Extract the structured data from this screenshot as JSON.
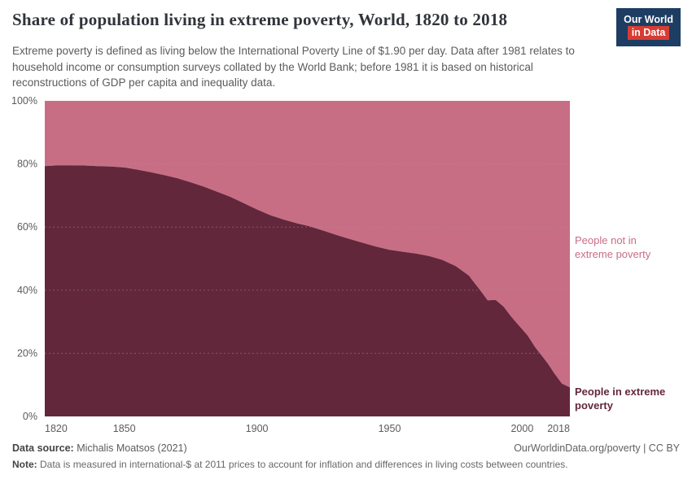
{
  "header": {
    "title": "Share of population living in extreme poverty, World, 1820 to 2018",
    "subtitle": "Extreme poverty is defined as living below the International Poverty Line of $1.90 per day. Data after 1981 relates to household income or consumption surveys collated by the World Bank; before 1981 it is based on historical reconstructions of GDP per capita and inequality data.",
    "logo": {
      "line1": "Our World",
      "line2": "in Data",
      "bg_color": "#1d3d63",
      "accent_color": "#d73c34"
    }
  },
  "annotations": {
    "not_poverty_label": "People not in\nextreme poverty",
    "poverty_label": "People in extreme\npoverty"
  },
  "chart_data": {
    "type": "area",
    "stacked": true,
    "title": "Share of population living in extreme poverty, World, 1820 to 2018",
    "xlabel": "",
    "ylabel": "",
    "ylim": [
      0,
      100
    ],
    "grid": "dashed-horizontal",
    "legend_position": "right-edge-annotations",
    "x": [
      1820,
      1825,
      1830,
      1835,
      1840,
      1845,
      1850,
      1855,
      1860,
      1865,
      1870,
      1875,
      1880,
      1885,
      1890,
      1895,
      1900,
      1905,
      1910,
      1915,
      1920,
      1925,
      1930,
      1935,
      1940,
      1945,
      1950,
      1955,
      1960,
      1965,
      1970,
      1975,
      1980,
      1981,
      1984,
      1987,
      1990,
      1993,
      1996,
      1999,
      2002,
      2005,
      2008,
      2010,
      2012,
      2015,
      2017,
      2018
    ],
    "series": [
      {
        "name": "People in extreme poverty",
        "color": "#63273c",
        "values": [
          79.3,
          79.6,
          79.6,
          79.5,
          79.3,
          79.2,
          78.9,
          78.2,
          77.4,
          76.5,
          75.5,
          74.2,
          72.8,
          71.2,
          69.6,
          67.6,
          65.6,
          63.8,
          62.4,
          61.2,
          60.2,
          58.9,
          57.5,
          56.2,
          55.0,
          53.8,
          52.8,
          52.2,
          51.6,
          50.8,
          49.6,
          47.6,
          44.6,
          43.4,
          40.2,
          36.8,
          36.9,
          34.8,
          31.5,
          28.6,
          25.7,
          21.8,
          18.6,
          16.4,
          13.8,
          10.4,
          9.6,
          9.2
        ]
      },
      {
        "name": "People not in extreme poverty",
        "color": "#c76e85",
        "values": [
          20.7,
          20.4,
          20.4,
          20.5,
          20.7,
          20.8,
          21.1,
          21.8,
          22.6,
          23.5,
          24.5,
          25.8,
          27.2,
          28.8,
          30.4,
          32.4,
          34.4,
          36.2,
          37.6,
          38.8,
          39.8,
          41.1,
          42.5,
          43.8,
          45.0,
          46.2,
          47.2,
          47.8,
          48.4,
          49.2,
          50.4,
          52.4,
          55.4,
          56.6,
          59.8,
          63.2,
          63.1,
          65.2,
          68.5,
          71.4,
          74.3,
          78.2,
          81.4,
          83.6,
          86.2,
          89.6,
          90.4,
          90.8
        ]
      }
    ],
    "yticks": [
      0,
      20,
      40,
      60,
      80,
      100
    ],
    "yticklabels": [
      "0%",
      "20%",
      "40%",
      "60%",
      "80%",
      "100%"
    ],
    "xticks": [
      1820,
      1850,
      1900,
      1950,
      2000,
      2018
    ],
    "xticklabels": [
      "1820",
      "1850",
      "1900",
      "1950",
      "2000",
      "2018"
    ]
  },
  "footer": {
    "source_label": "Data source:",
    "source_text": " Michalis Moatsos (2021)",
    "right_text": "OurWorldinData.org/poverty | CC BY",
    "note_label": "Note:",
    "note_text": " Data is measured in international-$ at 2011 prices to account for inflation and differences in living costs between countries."
  }
}
